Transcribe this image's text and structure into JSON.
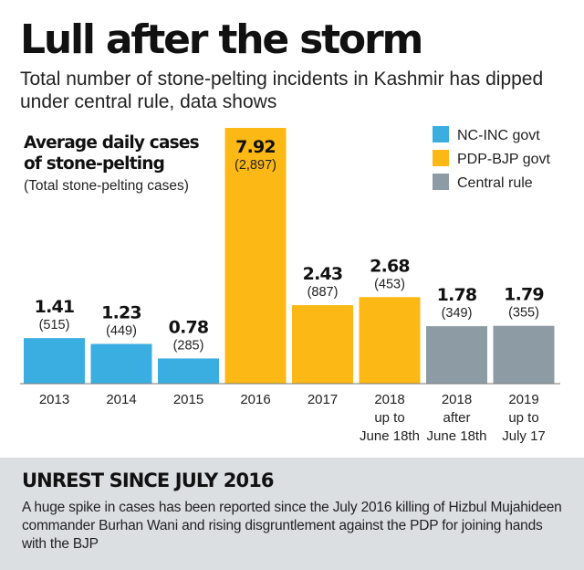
{
  "header": {
    "title": "Lull after the storm",
    "subtitle": "Total number of stone-pelting incidents in Kashmir has dipped under central rule, data shows"
  },
  "chart_data": {
    "type": "bar",
    "title": "Average daily cases of stone-pelting",
    "subtitle": "(Total stone-pelting cases)",
    "categories": [
      [
        "2013"
      ],
      [
        "2014"
      ],
      [
        "2015"
      ],
      [
        "2016"
      ],
      [
        "2017"
      ],
      [
        "2018",
        "up to",
        "June 18th"
      ],
      [
        "2018",
        "after",
        "June 18th"
      ],
      [
        "2019",
        "up to",
        "July 17"
      ]
    ],
    "values": [
      1.41,
      1.23,
      0.78,
      7.92,
      2.43,
      2.68,
      1.78,
      1.79
    ],
    "totals": [
      "(515)",
      "(449)",
      "(285)",
      "(2,897)",
      "(887)",
      "(453)",
      "(349)",
      "(355)"
    ],
    "groups": [
      0,
      0,
      0,
      1,
      1,
      1,
      2,
      2
    ],
    "legend": [
      {
        "name": "NC-INC govt",
        "color": "#3aaee0"
      },
      {
        "name": "PDP-BJP govt",
        "color": "#fcb814"
      },
      {
        "name": "Central rule",
        "color": "#8d9ba5"
      }
    ],
    "legend_position": "top-right",
    "ylim": [
      0,
      7.92
    ],
    "grid": false
  },
  "unrest": {
    "title": "UNREST SINCE JULY 2016",
    "text": "A huge spike in cases has been reported since the July 2016 killing of Hizbul Mujahideen commander Burhan Wani and rising disgruntlement against the PDP for joining hands with the BJP"
  }
}
